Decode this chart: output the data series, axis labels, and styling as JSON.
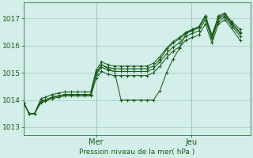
{
  "background_color": "#d4eeea",
  "grid_color": "#a0c8c4",
  "line_color_dark": "#1a5c1a",
  "line_color_med": "#2a7a2a",
  "xlabel": "Pression niveau de la mer( hPa )",
  "xlabel_color": "#1a5c1a",
  "tick_color": "#1a5c1a",
  "ylim": [
    1012.7,
    1017.6
  ],
  "yticks": [
    1013,
    1014,
    1015,
    1016,
    1017
  ],
  "x_day_labels": [
    [
      "Mer",
      0.335
    ],
    [
      "Jeu",
      0.775
    ]
  ],
  "xlim": [
    0.0,
    1.05
  ],
  "series_x": [
    0.0,
    0.025,
    0.05,
    0.08,
    0.1,
    0.13,
    0.16,
    0.19,
    0.22,
    0.25,
    0.28,
    0.31,
    0.335,
    0.36,
    0.39,
    0.42,
    0.45,
    0.48,
    0.51,
    0.54,
    0.57,
    0.6,
    0.63,
    0.66,
    0.69,
    0.72,
    0.75,
    0.78,
    0.81,
    0.84,
    0.87,
    0.9,
    0.93,
    0.96,
    1.0
  ],
  "series": [
    [
      1013.9,
      1013.5,
      1013.5,
      1013.95,
      1014.0,
      1014.1,
      1014.15,
      1014.2,
      1014.2,
      1014.2,
      1014.2,
      1014.2,
      1015.0,
      1015.3,
      1015.15,
      1015.05,
      1014.0,
      1014.0,
      1014.0,
      1014.0,
      1014.0,
      1014.0,
      1014.35,
      1015.0,
      1015.5,
      1015.9,
      1016.45,
      1016.6,
      1016.7,
      1017.1,
      1016.3,
      1017.1,
      1017.2,
      1016.9,
      1016.6
    ],
    [
      1013.9,
      1013.5,
      1013.5,
      1013.95,
      1014.0,
      1014.1,
      1014.15,
      1014.2,
      1014.2,
      1014.2,
      1014.2,
      1014.2,
      1015.0,
      1015.3,
      1015.2,
      1015.15,
      1015.15,
      1015.15,
      1015.15,
      1015.15,
      1015.15,
      1015.25,
      1015.5,
      1015.85,
      1016.1,
      1016.25,
      1016.45,
      1016.55,
      1016.65,
      1017.05,
      1016.3,
      1017.0,
      1017.1,
      1016.8,
      1016.45
    ],
    [
      1013.9,
      1013.5,
      1013.5,
      1014.05,
      1014.1,
      1014.2,
      1014.25,
      1014.3,
      1014.3,
      1014.3,
      1014.3,
      1014.3,
      1015.1,
      1015.4,
      1015.3,
      1015.25,
      1015.25,
      1015.25,
      1015.25,
      1015.25,
      1015.25,
      1015.35,
      1015.6,
      1015.9,
      1016.15,
      1016.3,
      1016.5,
      1016.6,
      1016.7,
      1017.1,
      1016.4,
      1017.05,
      1017.15,
      1016.85,
      1016.5
    ],
    [
      1013.9,
      1013.5,
      1013.5,
      1013.95,
      1014.0,
      1014.1,
      1014.15,
      1014.2,
      1014.2,
      1014.2,
      1014.2,
      1014.2,
      1014.95,
      1015.2,
      1015.1,
      1015.05,
      1015.05,
      1015.05,
      1015.05,
      1015.05,
      1015.05,
      1015.15,
      1015.4,
      1015.7,
      1015.95,
      1016.1,
      1016.35,
      1016.45,
      1016.55,
      1016.95,
      1016.25,
      1016.9,
      1017.05,
      1016.75,
      1016.35
    ],
    [
      1013.9,
      1013.5,
      1013.5,
      1013.9,
      1013.95,
      1014.05,
      1014.1,
      1014.15,
      1014.15,
      1014.15,
      1014.15,
      1014.15,
      1014.8,
      1015.05,
      1014.95,
      1014.9,
      1014.9,
      1014.9,
      1014.9,
      1014.9,
      1014.9,
      1015.0,
      1015.25,
      1015.55,
      1015.8,
      1015.95,
      1016.2,
      1016.3,
      1016.4,
      1016.8,
      1016.1,
      1016.8,
      1016.95,
      1016.65,
      1016.2
    ]
  ]
}
